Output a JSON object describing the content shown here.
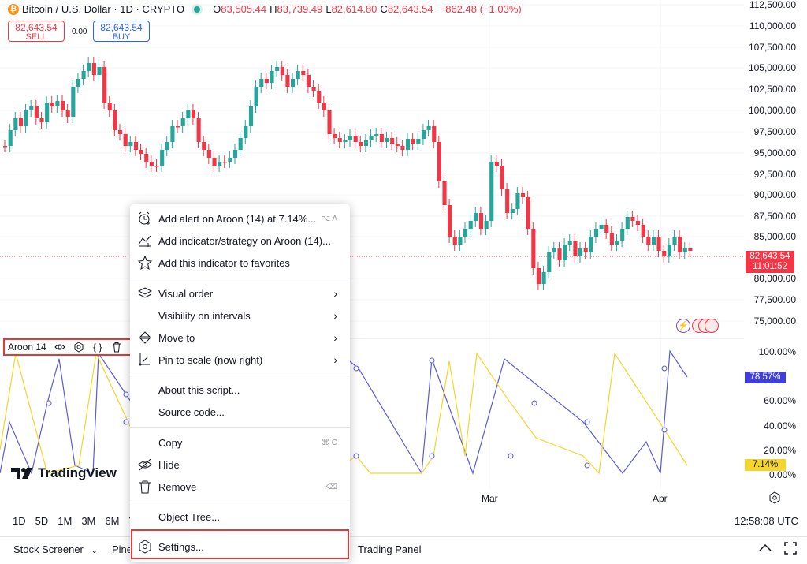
{
  "header": {
    "symbol": "Bitcoin / U.S. Dollar · 1D · CRYPTO",
    "btc_glyph": "₿",
    "ohlc": [
      {
        "k": "O",
        "v": "83,505.44"
      },
      {
        "k": "H",
        "v": "83,739.49"
      },
      {
        "k": "L",
        "v": "82,614.80"
      },
      {
        "k": "C",
        "v": "82,643.54"
      }
    ],
    "change": "−862.48 (−1.03%)"
  },
  "trade": {
    "sell_price": "82,643.54",
    "sell_label": "SELL",
    "spread": "0.00",
    "buy_price": "82,643.54",
    "buy_label": "BUY"
  },
  "price_axis": [
    "112,500.00",
    "110,000.00",
    "107,500.00",
    "105,000.00",
    "102,500.00",
    "100,000.00",
    "97,500.00",
    "95,000.00",
    "92,500.00",
    "90,000.00",
    "87,500.00",
    "85,000.00",
    "80,000.00",
    "77,500.00",
    "75,000.00"
  ],
  "last_price": {
    "value": "82,643.54",
    "countdown": "11:01:52"
  },
  "aroon_axis": [
    "100.00%",
    "60.00%",
    "40.00%",
    "20.00%",
    "0.00%"
  ],
  "aroon_tags": {
    "down": "78.57%",
    "up": "7.14%"
  },
  "legend": {
    "name": "Aroon 14",
    "code_glyph": "{ }"
  },
  "context_menu": {
    "add_alert": "Add alert on Aroon (14) at 7.14%...",
    "add_alert_shortcut": "⌥ A",
    "add_indicator": "Add indicator/strategy on Aroon (14)...",
    "add_favorites": "Add this indicator to favorites",
    "visual_order": "Visual order",
    "visibility": "Visibility on intervals",
    "move_to": "Move to",
    "pin_scale": "Pin to scale (now right)",
    "about": "About this script...",
    "source": "Source code...",
    "copy": "Copy",
    "copy_shortcut": "⌘ C",
    "hide": "Hide",
    "remove": "Remove",
    "remove_shortcut": "⌫",
    "object_tree": "Object Tree...",
    "settings": "Settings...",
    "chevron": "›"
  },
  "time_axis": {
    "mar": "Mar",
    "apr": "Apr"
  },
  "timeframes": [
    "1D",
    "5D",
    "1M",
    "3M",
    "6M",
    "YT"
  ],
  "clock": "12:58:08 UTC",
  "bottom_bar": {
    "screener": "Stock Screener",
    "pine": "Pine",
    "trading_panel": "Trading Panel"
  },
  "watermark": "TradingView",
  "colors": {
    "up": "#26a69a",
    "down": "#f23645",
    "aroon_up": "#f5d52a",
    "aroon_down": "#5b5bd6",
    "accent": "#2962ff"
  }
}
